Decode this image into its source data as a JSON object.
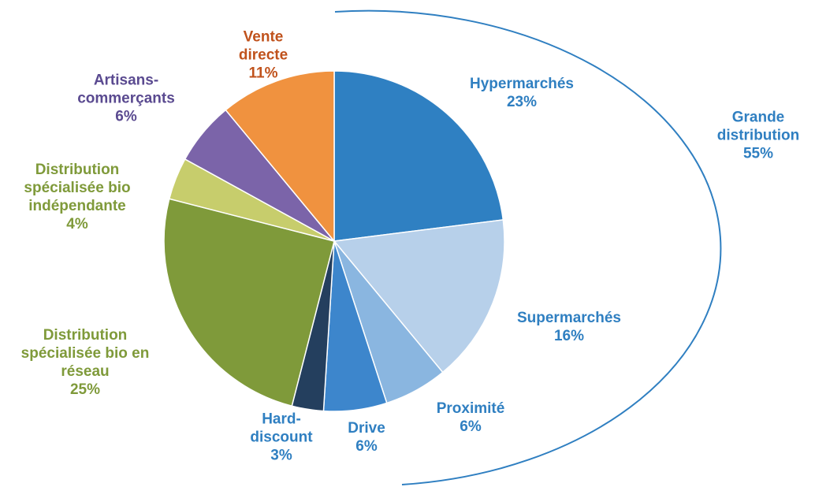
{
  "chart_data": {
    "type": "pie",
    "categories": [
      "Hypermarchés",
      "Supermarchés",
      "Proximité",
      "Drive",
      "Hard-discount",
      "Distribution spécialisée bio en réseau",
      "Distribution spécialisée bio indépendante",
      "Artisans-commerçants",
      "Vente directe"
    ],
    "values": [
      23,
      16,
      6,
      6,
      3,
      25,
      4,
      6,
      11
    ],
    "value_labels": [
      "23%",
      "16%",
      "6%",
      "6%",
      "3%",
      "25%",
      "4%",
      "6%",
      "11%"
    ],
    "colors": [
      "#2f80c2",
      "#b7d0ea",
      "#8ab6e0",
      "#3d86cc",
      "#243f5e",
      "#7f9a3a",
      "#c7cd6c",
      "#7b64a9",
      "#f0923f"
    ],
    "label_colors": [
      "#2f7fc1",
      "#2f7fc1",
      "#2f7fc1",
      "#2f7fc1",
      "#2f7fc1",
      "#7f9a3a",
      "#7f9a3a",
      "#5a4a90",
      "#c0521c"
    ],
    "annotations": [
      {
        "text": "Grande distribution",
        "value": 55,
        "label": "55%",
        "color": "#2f7fc1"
      }
    ]
  }
}
